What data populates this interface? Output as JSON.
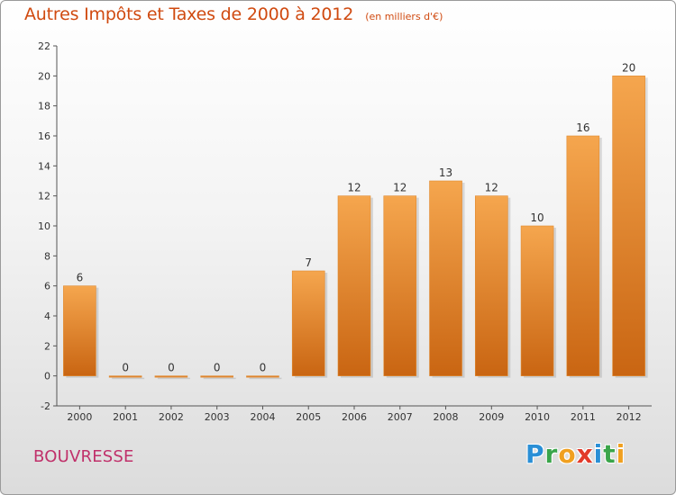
{
  "header": {
    "title": "Autres Impôts et Taxes de 2000 à 2012",
    "unit": "(en milliers d'€)"
  },
  "footer": {
    "commune": "BOUVRESSE",
    "brand": {
      "letters": [
        "P",
        "r",
        "o",
        "x",
        "i",
        "t",
        "i"
      ],
      "colors": [
        "#2a8fd6",
        "#3aa54a",
        "#f0a020",
        "#e23a2a",
        "#2a8fd6",
        "#3aa54a",
        "#f0a020"
      ]
    }
  },
  "colors": {
    "bar_light": "#f5a64e",
    "bar_dark": "#c96512",
    "axis": "#555555",
    "grid": "#dddddd",
    "title": "#d04a10"
  },
  "chart_data": {
    "type": "bar",
    "categories": [
      "2000",
      "2001",
      "2002",
      "2003",
      "2004",
      "2005",
      "2006",
      "2007",
      "2008",
      "2009",
      "2010",
      "2011",
      "2012"
    ],
    "values": [
      6,
      0,
      0,
      0,
      0,
      7,
      12,
      12,
      13,
      12,
      10,
      16,
      20
    ],
    "data_labels": [
      "6",
      "0",
      "0",
      "0",
      "0",
      "7",
      "12",
      "12",
      "13",
      "12",
      "10",
      "16",
      "20"
    ],
    "yticks": [
      -2,
      0,
      2,
      4,
      6,
      8,
      10,
      12,
      14,
      16,
      18,
      20,
      22
    ],
    "ylim": [
      -2,
      22
    ],
    "grid": false
  }
}
